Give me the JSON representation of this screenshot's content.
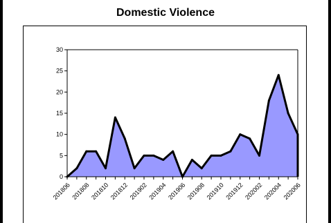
{
  "chart_data": {
    "type": "area",
    "title": "Domestic Violence",
    "xlabel": "",
    "ylabel": "",
    "ylim": [
      0,
      30
    ],
    "yticks": [
      0,
      5,
      10,
      15,
      20,
      25,
      30
    ],
    "grid": false,
    "legend": "none",
    "x": [
      "201806",
      "201807",
      "201808",
      "201809",
      "201810",
      "201811",
      "201812",
      "201901",
      "201902",
      "201903",
      "201904",
      "201905",
      "201906",
      "201907",
      "201908",
      "201909",
      "201910",
      "201911",
      "201912",
      "202001",
      "202002",
      "202003",
      "202004",
      "202005",
      "202006"
    ],
    "x_tick_labels": [
      "201806",
      "201808",
      "201810",
      "201812",
      "201902",
      "201904",
      "201906",
      "201908",
      "201910",
      "201912",
      "202002",
      "202004",
      "202006"
    ],
    "series": [
      {
        "values": [
          0,
          2,
          6,
          6,
          2,
          14,
          9,
          2,
          5,
          5,
          4,
          6,
          0,
          4,
          2,
          5,
          5,
          6,
          10,
          9,
          5,
          18,
          24,
          15,
          10
        ]
      }
    ],
    "colors": {
      "fill": "#9999ff",
      "line": "#000000"
    }
  }
}
